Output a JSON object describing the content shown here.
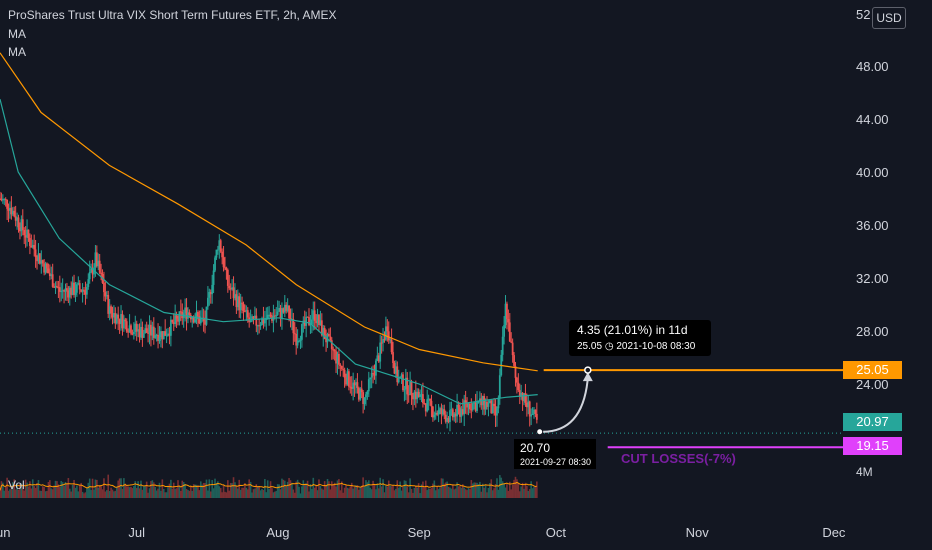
{
  "header": {
    "title": "ProShares Trust Ultra VIX Short Term Futures ETF, 2h, AMEX",
    "indicator_1": "MA",
    "indicator_2": "MA",
    "currency": "USD",
    "volume_label": "Vol"
  },
  "colors": {
    "background": "#131722",
    "up": "#26a69a",
    "down": "#ef5350",
    "ma_fast": "#26a69a",
    "ma_slow": "#ff9800",
    "target_line": "#ff9800",
    "stop_line": "#e040fb",
    "cut_text": "#7b1fa2",
    "price_tag": "#26a69a"
  },
  "price_tags": {
    "target": "25.05",
    "last": "20.97",
    "stop": "19.15"
  },
  "annotations": {
    "measure_main": "4.35 (21.01%) in 11d",
    "measure_target": "25.05",
    "measure_time": "2021-10-08 08:30",
    "low_price": "20.70",
    "low_time": "2021-09-27 08:30",
    "cut_losses": "CUT LOSSES(-7%)"
  },
  "chart_data": {
    "type": "candlestick",
    "title": "ProShares Trust Ultra VIX Short Term Futures ETF, 2h, AMEX",
    "y_axis": {
      "ticks": [
        "48.00",
        "44.00",
        "40.00",
        "36.00",
        "32.00",
        "28.00",
        "24.00"
      ],
      "tick_values": [
        48,
        44,
        40,
        36,
        32,
        28,
        24
      ],
      "partial_top_tick": "52",
      "range": [
        17.8,
        52.5
      ]
    },
    "x_axis": {
      "ticks": [
        "Jun",
        "Jul",
        "Aug",
        "Sep",
        "Oct",
        "Nov",
        "Dec"
      ],
      "start": "2021-06-01",
      "end": "2021-12-03"
    },
    "volume_axis_label": "4M",
    "price_path": [
      {
        "date": "2021-06-01",
        "close": 38.0
      },
      {
        "date": "2021-06-03",
        "close": 37.5
      },
      {
        "date": "2021-06-08",
        "close": 34.5
      },
      {
        "date": "2021-06-14",
        "close": 31.0
      },
      {
        "date": "2021-06-20",
        "close": 31.2
      },
      {
        "date": "2021-06-22",
        "close": 33.5
      },
      {
        "date": "2021-06-25",
        "close": 29.5
      },
      {
        "date": "2021-07-01",
        "close": 28.0
      },
      {
        "date": "2021-07-07",
        "close": 27.8
      },
      {
        "date": "2021-07-12",
        "close": 29.5
      },
      {
        "date": "2021-07-16",
        "close": 28.6
      },
      {
        "date": "2021-07-19",
        "close": 35.0
      },
      {
        "date": "2021-07-21",
        "close": 31.5
      },
      {
        "date": "2021-07-26",
        "close": 28.5
      },
      {
        "date": "2021-07-30",
        "close": 29.0
      },
      {
        "date": "2021-08-03",
        "close": 29.6
      },
      {
        "date": "2021-08-05",
        "close": 27.5
      },
      {
        "date": "2021-08-09",
        "close": 29.3
      },
      {
        "date": "2021-08-11",
        "close": 27.8
      },
      {
        "date": "2021-08-16",
        "close": 24.5
      },
      {
        "date": "2021-08-20",
        "close": 22.8
      },
      {
        "date": "2021-08-23",
        "close": 26.0
      },
      {
        "date": "2021-08-25",
        "close": 28.5
      },
      {
        "date": "2021-08-27",
        "close": 24.5
      },
      {
        "date": "2021-09-01",
        "close": 23.0
      },
      {
        "date": "2021-09-04",
        "close": 22.0
      },
      {
        "date": "2021-09-08",
        "close": 21.5
      },
      {
        "date": "2021-09-12",
        "close": 22.5
      },
      {
        "date": "2021-09-16",
        "close": 22.5
      },
      {
        "date": "2021-09-18",
        "close": 21.5
      },
      {
        "date": "2021-09-20",
        "close": 30.0
      },
      {
        "date": "2021-09-22",
        "close": 24.5
      },
      {
        "date": "2021-09-24",
        "close": 22.8
      },
      {
        "date": "2021-09-27",
        "close": 20.97
      }
    ],
    "ma_slow": [
      {
        "date": "2021-06-01",
        "value": 49.0
      },
      {
        "date": "2021-06-10",
        "value": 44.5
      },
      {
        "date": "2021-06-25",
        "value": 40.5
      },
      {
        "date": "2021-07-10",
        "value": 37.6
      },
      {
        "date": "2021-07-25",
        "value": 34.5
      },
      {
        "date": "2021-08-05",
        "value": 31.5
      },
      {
        "date": "2021-08-20",
        "value": 28.3
      },
      {
        "date": "2021-09-01",
        "value": 26.6
      },
      {
        "date": "2021-09-15",
        "value": 25.6
      },
      {
        "date": "2021-09-27",
        "value": 25.0
      }
    ],
    "ma_fast": [
      {
        "date": "2021-06-01",
        "value": 45.5
      },
      {
        "date": "2021-06-05",
        "value": 40.0
      },
      {
        "date": "2021-06-14",
        "value": 35.0
      },
      {
        "date": "2021-06-25",
        "value": 31.5
      },
      {
        "date": "2021-07-07",
        "value": 29.4
      },
      {
        "date": "2021-07-20",
        "value": 28.7
      },
      {
        "date": "2021-08-01",
        "value": 29.0
      },
      {
        "date": "2021-08-08",
        "value": 28.6
      },
      {
        "date": "2021-08-18",
        "value": 25.5
      },
      {
        "date": "2021-09-01",
        "value": 24.0
      },
      {
        "date": "2021-09-10",
        "value": 22.5
      },
      {
        "date": "2021-09-20",
        "value": 23.0
      },
      {
        "date": "2021-09-27",
        "value": 23.2
      }
    ],
    "levels": {
      "target": 25.05,
      "last": 20.97,
      "stop": 19.15,
      "low": 20.7
    },
    "projection": {
      "from_date": "2021-09-27",
      "from_value": 20.7,
      "to_date": "2021-10-08",
      "to_value": 25.05,
      "change": 4.35,
      "change_pct": 21.01,
      "days": 11
    }
  }
}
